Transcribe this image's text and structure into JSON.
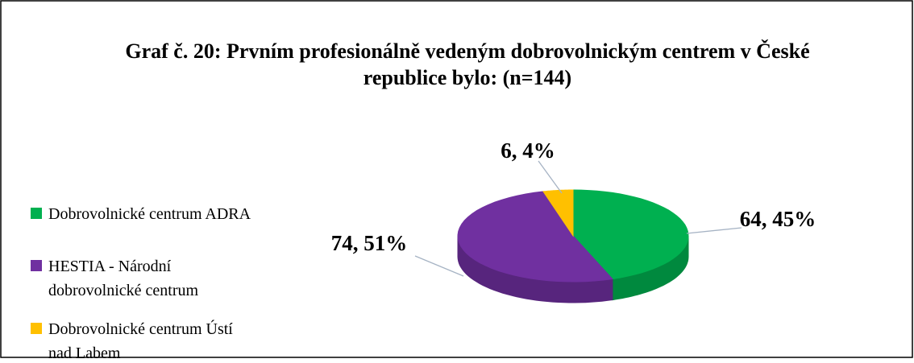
{
  "chart_data": {
    "type": "pie",
    "title": "Graf č. 20: Prvním profesionálně vedeným dobrovolnickým centrem v České republice bylo: (n=144)",
    "title_lines": [
      "Graf č. 20: Prvním profesionálně vedeným dobrovolnickým centrem v České",
      "republice bylo: (n=144)"
    ],
    "categories": [
      "Dobrovolnické centrum ADRA",
      "HESTIA - Národní dobrovolnické centrum",
      "Dobrovolnické centrum Ústí nad Labem"
    ],
    "legend_lines": [
      [
        "Dobrovolnické centrum ADRA"
      ],
      [
        "HESTIA - Národní",
        "dobrovolnické centrum"
      ],
      [
        "Dobrovolnické centrum Ústí",
        "nad Labem"
      ]
    ],
    "values": [
      64,
      74,
      6
    ],
    "value_labels": [
      "64, 45%",
      "74, 51%",
      "6, 4%"
    ],
    "colors": [
      "#00b050",
      "#7030a0",
      "#ffc000"
    ],
    "legend": "left"
  }
}
